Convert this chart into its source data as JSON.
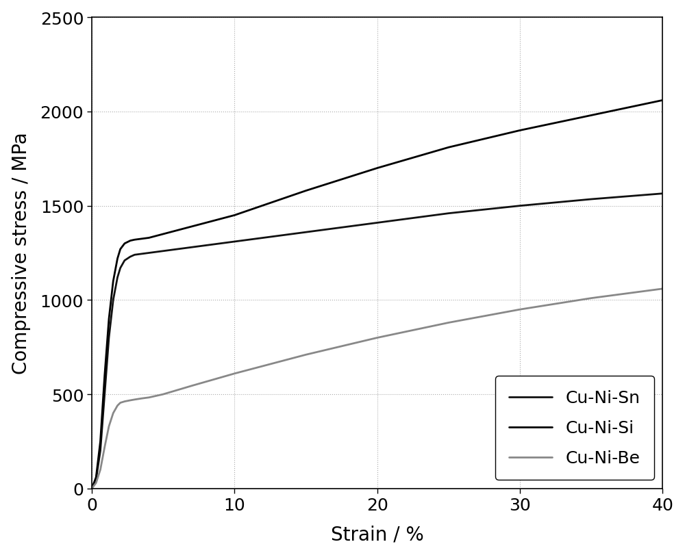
{
  "title": "",
  "xlabel": "Strain / %",
  "ylabel": "Compressive stress / MPa",
  "xlim": [
    0,
    40
  ],
  "ylim": [
    0,
    2500
  ],
  "xticks": [
    0,
    10,
    20,
    30,
    40
  ],
  "yticks": [
    0,
    500,
    1000,
    1500,
    2000,
    2500
  ],
  "background_color": "#ffffff",
  "grid_color": "#aaaaaa",
  "series": [
    {
      "label": "Cu-Ni-Sn",
      "color": "#111111",
      "linewidth": 2.0,
      "points": [
        [
          0,
          0
        ],
        [
          0.3,
          50
        ],
        [
          0.6,
          200
        ],
        [
          0.9,
          500
        ],
        [
          1.2,
          800
        ],
        [
          1.5,
          1000
        ],
        [
          1.8,
          1120
        ],
        [
          2.0,
          1170
        ],
        [
          2.3,
          1210
        ],
        [
          2.7,
          1230
        ],
        [
          3.0,
          1240
        ],
        [
          3.5,
          1245
        ],
        [
          4.0,
          1250
        ],
        [
          5.0,
          1260
        ],
        [
          7.0,
          1280
        ],
        [
          10.0,
          1310
        ],
        [
          15.0,
          1360
        ],
        [
          20.0,
          1410
        ],
        [
          25.0,
          1460
        ],
        [
          30.0,
          1500
        ],
        [
          35.0,
          1535
        ],
        [
          40.0,
          1565
        ]
      ]
    },
    {
      "label": "Cu-Ni-Si",
      "color": "#000000",
      "linewidth": 2.0,
      "points": [
        [
          0,
          0
        ],
        [
          0.3,
          60
        ],
        [
          0.6,
          250
        ],
        [
          0.9,
          600
        ],
        [
          1.2,
          900
        ],
        [
          1.5,
          1100
        ],
        [
          1.8,
          1220
        ],
        [
          2.0,
          1270
        ],
        [
          2.3,
          1300
        ],
        [
          2.7,
          1315
        ],
        [
          3.0,
          1320
        ],
        [
          3.5,
          1325
        ],
        [
          4.0,
          1330
        ],
        [
          5.0,
          1350
        ],
        [
          7.0,
          1390
        ],
        [
          10.0,
          1450
        ],
        [
          15.0,
          1580
        ],
        [
          20.0,
          1700
        ],
        [
          25.0,
          1810
        ],
        [
          30.0,
          1900
        ],
        [
          35.0,
          1980
        ],
        [
          40.0,
          2060
        ]
      ]
    },
    {
      "label": "Cu-Ni-Be",
      "color": "#888888",
      "linewidth": 2.0,
      "points": [
        [
          0,
          0
        ],
        [
          0.3,
          30
        ],
        [
          0.6,
          100
        ],
        [
          0.9,
          220
        ],
        [
          1.2,
          330
        ],
        [
          1.5,
          400
        ],
        [
          1.8,
          440
        ],
        [
          2.0,
          455
        ],
        [
          2.3,
          462
        ],
        [
          2.7,
          468
        ],
        [
          3.0,
          472
        ],
        [
          3.5,
          478
        ],
        [
          4.0,
          483
        ],
        [
          5.0,
          500
        ],
        [
          7.0,
          545
        ],
        [
          10.0,
          610
        ],
        [
          15.0,
          710
        ],
        [
          20.0,
          800
        ],
        [
          25.0,
          880
        ],
        [
          30.0,
          950
        ],
        [
          35.0,
          1010
        ],
        [
          40.0,
          1060
        ]
      ]
    }
  ],
  "legend_loc": "lower right",
  "fontsize_label": 20,
  "fontsize_tick": 18,
  "fontsize_legend": 18
}
